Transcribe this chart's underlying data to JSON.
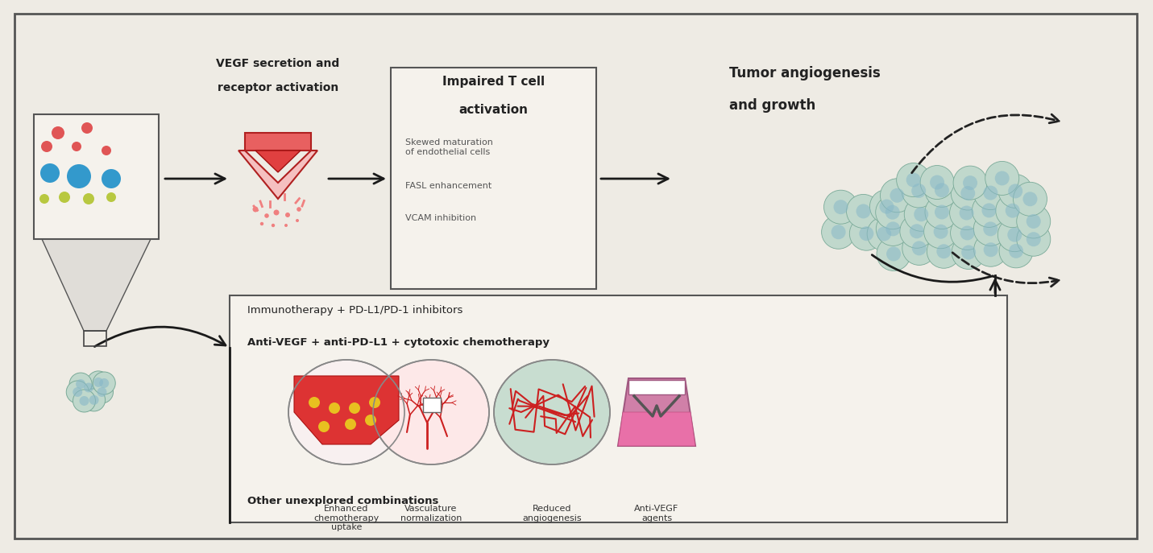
{
  "bg_color": "#eeebe4",
  "border_color": "#555555",
  "vegf_label_1": "VEGF secretion and",
  "vegf_label_2": "receptor activation",
  "impaired_title_1": "Impaired T cell",
  "impaired_title_2": "activation",
  "impaired_bullets": [
    "Skewed maturation\nof endothelial cells",
    "FASL enhancement",
    "VCAM inhibition"
  ],
  "tumor_label_1": "Tumor angiogenesis",
  "tumor_label_2": "and growth",
  "immunotherapy_line1": "Immunotherapy + PD-L1/PD-1 inhibitors",
  "immunotherapy_line2": "Anti-VEGF + anti-PD-L1 + cytotoxic chemotherapy",
  "other_label": "Other unexplored combinations",
  "labels_bottom": [
    "Enhanced\nchemotherapy\nuptake",
    "Vasculature\nnormalization",
    "Reduced\nangiogenesis",
    "Anti-VEGF\nagents"
  ],
  "arrow_color": "#1a1a1a",
  "red_dark": "#c03030",
  "red_mid": "#e05050",
  "pink_light": "#f0a0a0",
  "pink_very_light": "#fce8e8",
  "salmon": "#e87878",
  "teal_cell": "#a8c8bc",
  "teal_edge": "#7aaa98",
  "teal_nucleus": "#88b8c8",
  "purple_color": "#c090b0",
  "purple_dark": "#907080",
  "pink_icon": "#e868a0",
  "yellow_dot": "#e8c020",
  "blue_color": "#3399cc",
  "green_cell_bg": "#c0d8cc",
  "green_reduced": "#b8d4c0",
  "yellow_green": "#b8c840"
}
